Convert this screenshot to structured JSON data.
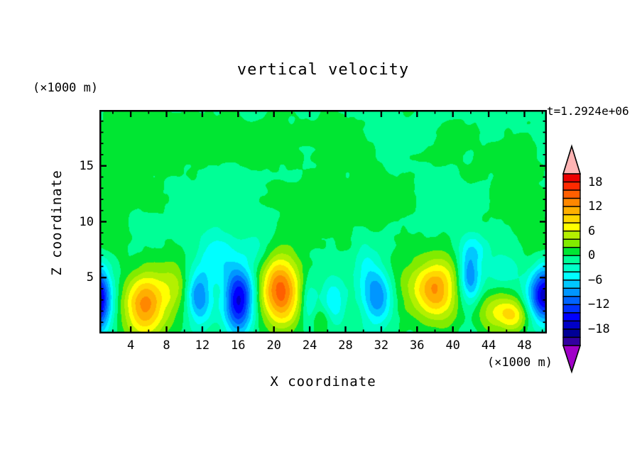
{
  "page": {
    "background": "#ffffff"
  },
  "chart_data": {
    "type": "heatmap",
    "title": "vertical velocity",
    "time_label": "t=1.2924e+06",
    "xlabel": "X coordinate",
    "ylabel": "Z coordinate",
    "x_unit_label": "(×1000 m)",
    "y_unit_label": "(×1000 m)",
    "x_range": [
      0.5,
      50.5
    ],
    "z_range": [
      0,
      20
    ],
    "x_ticks_labeled": [
      4,
      8,
      12,
      16,
      20,
      24,
      28,
      32,
      36,
      40,
      44,
      48
    ],
    "x_tick_minor_step": 2,
    "z_ticks_labeled": [
      5,
      10,
      15
    ],
    "z_tick_minor_step": 1,
    "levels": {
      "max": 20,
      "min": -22,
      "interval": 2
    },
    "colorbar": {
      "labels": [
        18,
        12,
        6,
        0,
        -6,
        -12,
        -18
      ],
      "colors": [
        "#EB0000",
        "#FF2A00",
        "#FF5F00",
        "#FF8700",
        "#FFAF00",
        "#FFD700",
        "#FFFF00",
        "#B4F000",
        "#82EB00",
        "#00E632",
        "#00FF96",
        "#00FFC8",
        "#00FFFF",
        "#00C8FF",
        "#0096FF",
        "#0064FF",
        "#0032FF",
        "#0000FF",
        "#0000C8",
        "#000096",
        "#3200A0"
      ],
      "over_color": "#FFB4B4",
      "under_color": "#A000C8"
    },
    "background_value": -0.6,
    "noise": {
      "amp": 0.85,
      "seed": 7.3
    },
    "field_blobs_format": [
      "x",
      "z",
      "sigma_x",
      "sigma_z",
      "amplitude"
    ],
    "field_blobs": [
      [
        0.3,
        3.0,
        1.05,
        2.0,
        -17.5
      ],
      [
        5.6,
        2.5,
        1.6,
        2.0,
        13.5
      ],
      [
        8.8,
        4.3,
        1.2,
        2.2,
        4.2
      ],
      [
        11.6,
        3.2,
        0.95,
        1.7,
        -9.5
      ],
      [
        12.9,
        6.8,
        1.0,
        1.8,
        -3.2
      ],
      [
        14.6,
        6.8,
        0.9,
        1.6,
        -2.8
      ],
      [
        16.1,
        3.0,
        1.15,
        2.1,
        -15.8
      ],
      [
        17.9,
        7.6,
        1.1,
        1.4,
        -2.6
      ],
      [
        20.7,
        3.8,
        1.55,
        2.2,
        15.8
      ],
      [
        23.9,
        2.9,
        0.65,
        1.5,
        -4.5
      ],
      [
        25.4,
        1.3,
        0.8,
        0.9,
        3.5
      ],
      [
        26.6,
        2.8,
        0.95,
        1.5,
        -5.0
      ],
      [
        30.2,
        6.3,
        0.9,
        1.7,
        -3.0
      ],
      [
        31.6,
        3.3,
        1.15,
        1.7,
        -9.0
      ],
      [
        34.2,
        4.5,
        1.3,
        2.6,
        1.9
      ],
      [
        38.0,
        3.9,
        1.75,
        1.95,
        13.0
      ],
      [
        41.9,
        4.9,
        0.85,
        1.7,
        -9.5
      ],
      [
        42.6,
        7.6,
        1.4,
        1.0,
        -3.2
      ],
      [
        44.6,
        2.0,
        1.5,
        1.2,
        6.0
      ],
      [
        46.9,
        1.6,
        1.2,
        1.0,
        7.4
      ],
      [
        45.9,
        5.6,
        1.2,
        1.0,
        -3.4
      ],
      [
        50.3,
        3.5,
        1.25,
        1.7,
        -17.0
      ],
      [
        0.8,
        16.0,
        1.5,
        2.0,
        1.5
      ],
      [
        1.5,
        9.0,
        2.0,
        2.6,
        1.5
      ],
      [
        6.0,
        16.0,
        3.4,
        3.0,
        1.6
      ],
      [
        13.0,
        18.0,
        2.0,
        2.0,
        1.4
      ],
      [
        19.0,
        16.5,
        2.2,
        2.2,
        1.5
      ],
      [
        24.0,
        11.0,
        2.6,
        2.6,
        1.5
      ],
      [
        26.5,
        17.5,
        2.0,
        1.8,
        1.4
      ],
      [
        31.0,
        11.5,
        2.6,
        2.4,
        1.5
      ],
      [
        40.0,
        17.0,
        2.4,
        2.0,
        1.3
      ],
      [
        46.5,
        13.0,
        2.6,
        2.8,
        1.6
      ],
      [
        49.5,
        8.0,
        1.5,
        1.8,
        1.7
      ]
    ]
  }
}
